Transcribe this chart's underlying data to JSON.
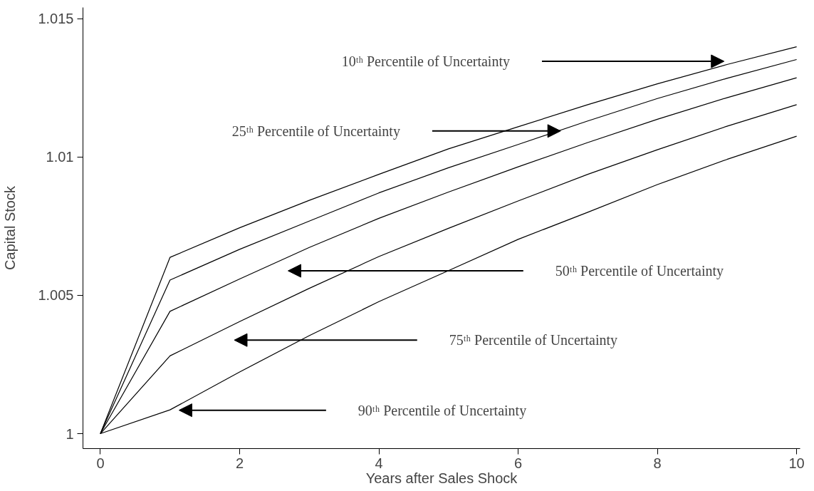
{
  "chart_data": {
    "type": "line",
    "xlabel": "Years after Sales Shock",
    "ylabel": "Capital Stock",
    "x": [
      0,
      1,
      2,
      3,
      4,
      5,
      6,
      7,
      8,
      9,
      10
    ],
    "series": [
      {
        "color": "#000000",
        "values": [
          1,
          1.00637,
          1.00744,
          1.00843,
          1.00937,
          1.01029,
          1.01109,
          1.01189,
          1.01264,
          1.01334,
          1.01398
        ]
      },
      {
        "color": "#000000",
        "values": [
          1,
          1.00555,
          1.00666,
          1.00768,
          1.0087,
          1.00961,
          1.01045,
          1.0113,
          1.01211,
          1.01284,
          1.01352
        ]
      },
      {
        "color": "#000000",
        "values": [
          1,
          1.00442,
          1.00559,
          1.00673,
          1.00778,
          1.00873,
          1.00964,
          1.01052,
          1.01136,
          1.01214,
          1.01286
        ]
      },
      {
        "color": "#000000",
        "values": [
          1,
          1.00281,
          1.00405,
          1.00525,
          1.0064,
          1.00742,
          1.00841,
          1.00937,
          1.01026,
          1.01111,
          1.01189
        ]
      },
      {
        "color": "#000000",
        "values": [
          1,
          1.00086,
          1.00223,
          1.00354,
          1.00477,
          1.00589,
          1.00702,
          1.008,
          1.009,
          1.00991,
          1.01075
        ]
      }
    ],
    "annotations": [
      "10ᵗʰ Percentile of Uncertainty",
      "25ᵗʰ Percentile of Uncertainty",
      "50ᵗʰ Percentile of Uncertainty",
      "75ᵗʰ Percentile of Uncertainty",
      "90ᵗʰ Percentile of Uncertainty"
    ],
    "xlim": [
      -0.25,
      10.05
    ],
    "ylim": [
      0.99946,
      1.0154
    ],
    "xticks": [
      0,
      2,
      4,
      6,
      8,
      10
    ],
    "yticks": [
      1,
      1.005,
      1.01,
      1.015
    ],
    "grid": false,
    "marker": "none",
    "line_style": "solid"
  }
}
